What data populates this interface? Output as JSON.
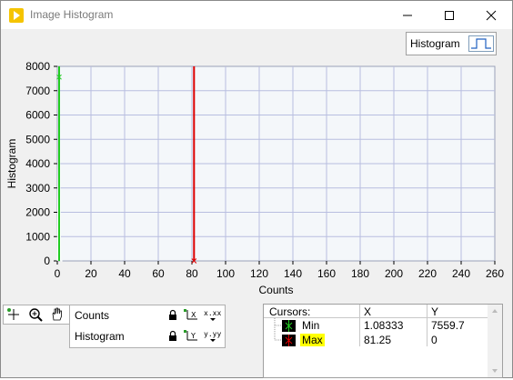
{
  "window": {
    "title": "Image Histogram",
    "minimize_icon": "minimize-icon",
    "maximize_icon": "maximize-icon",
    "close_icon": "close-icon"
  },
  "plot_legend": {
    "label": "Histogram",
    "icon": "step-plot-icon"
  },
  "chart_data": {
    "type": "line",
    "title": "",
    "xlabel": "Counts",
    "ylabel": "Histogram",
    "xlim": [
      0,
      260
    ],
    "ylim": [
      0,
      8000
    ],
    "x_ticks": [
      0,
      20,
      40,
      60,
      80,
      100,
      120,
      140,
      160,
      180,
      200,
      220,
      240,
      260
    ],
    "y_ticks": [
      0,
      1000,
      2000,
      3000,
      4000,
      5000,
      6000,
      7000,
      8000
    ],
    "grid": true,
    "series": [
      {
        "name": "Histogram",
        "x": [
          0,
          1,
          2,
          3
        ],
        "y": [
          0,
          8000,
          0,
          0
        ],
        "color": "#ffffff"
      }
    ],
    "cursors": [
      {
        "name": "Min",
        "x": 1.08333,
        "y": 7559.7,
        "color": "#22cc22"
      },
      {
        "name": "Max",
        "x": 81.25,
        "y": 0,
        "color": "#dd0000"
      }
    ],
    "plot_bg": "#f4f7fa",
    "grid_color": "#b8bee0"
  },
  "palette": {
    "tools": [
      "cursor-move-icon",
      "zoom-icon",
      "pan-hand-icon"
    ]
  },
  "scale_legend": {
    "rows": [
      {
        "name": "Counts",
        "lock_icon": "lock-icon",
        "autoscale_icon": "autoscale-x-icon",
        "format_text": "x.xx"
      },
      {
        "name": "Histogram",
        "lock_icon": "lock-icon",
        "autoscale_icon": "autoscale-y-icon",
        "format_text": "y.yy"
      }
    ]
  },
  "cursor_legend": {
    "headers": {
      "name": "Cursors:",
      "x": "X",
      "y": "Y"
    },
    "rows": [
      {
        "name": "Min",
        "x": "1.08333",
        "y": "7559.7",
        "color": "#22cc22",
        "highlight": false
      },
      {
        "name": "Max",
        "x": "81.25",
        "y": "0",
        "color": "#dd0000",
        "highlight": true
      }
    ],
    "highlight_color": "#ffff00"
  }
}
